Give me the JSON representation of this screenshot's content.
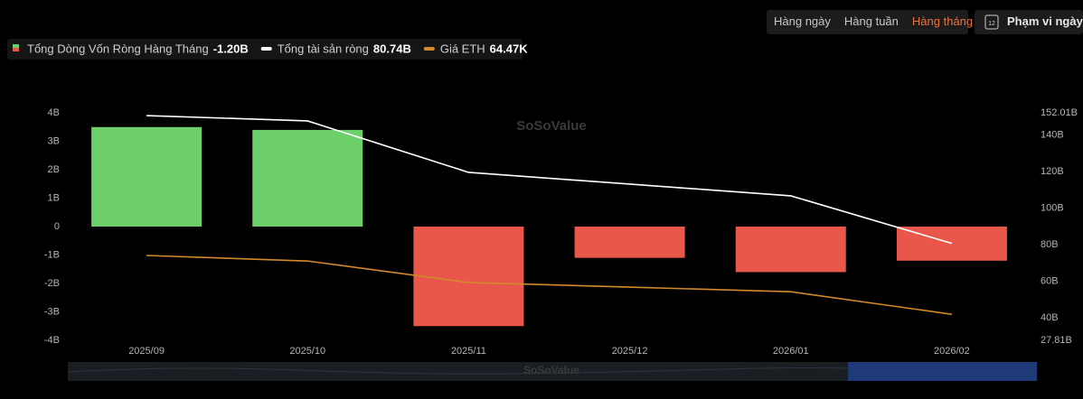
{
  "toolbar": {
    "periods": [
      "Hàng ngày",
      "Hàng tuần",
      "Hàng tháng"
    ],
    "active_period": 2,
    "date_range": "Phạm vi ngày",
    "calendar_day": "12"
  },
  "watermark": "SoSoValue",
  "chart_data": {
    "type": "bar",
    "categories": [
      "2025/09",
      "2025/10",
      "2025/11",
      "2025/12",
      "2026/01",
      "2026/02"
    ],
    "series": [
      {
        "name": "Tổng Dòng Vốn Ròng Hàng Tháng",
        "readout": "-1.20B",
        "type": "bar",
        "color_positive": "#6ccf6a",
        "color_negative": "#e8574a",
        "values": [
          3.5,
          3.4,
          -3.5,
          -1.1,
          -1.6,
          -1.2
        ]
      },
      {
        "name": "Tổng tài sản ròng",
        "readout": "80.74B",
        "type": "line",
        "color": "#ffffff",
        "axis": "y2",
        "values": [
          150.5,
          147.6,
          119.5,
          113.1,
          106.7,
          80.74
        ]
      },
      {
        "name": "Giá ETH",
        "readout": "64.47K",
        "type": "line",
        "color": "#d4892a",
        "axis": "y3",
        "values": [
          83.6,
          81.8,
          74.8,
          73.3,
          71.8,
          64.47
        ]
      }
    ],
    "ylim": [
      -4,
      4
    ],
    "yticks": [
      {
        "value": -4,
        "label": "-4B"
      },
      {
        "value": -3,
        "label": "-3B"
      },
      {
        "value": -2,
        "label": "-2B"
      },
      {
        "value": -1,
        "label": "-1B"
      },
      0,
      {
        "value": 1,
        "label": "1B"
      },
      {
        "value": 2,
        "label": "2B"
      },
      {
        "value": 3,
        "label": "3B"
      },
      {
        "value": 4,
        "label": "4B"
      }
    ],
    "y2lim": [
      27.81,
      152.01
    ],
    "y2ticks": [
      {
        "value": 27.81,
        "label": "27.81B"
      },
      {
        "value": 40,
        "label": "40B"
      },
      {
        "value": 60,
        "label": "60B"
      },
      {
        "value": 80,
        "label": "80B"
      },
      {
        "value": 100,
        "label": "100B"
      },
      {
        "value": 120,
        "label": "120B"
      },
      {
        "value": 140,
        "label": "140B"
      },
      {
        "value": 152.01,
        "label": "152.01B"
      }
    ],
    "y3lim": [
      56,
      130
    ],
    "grid": false
  }
}
